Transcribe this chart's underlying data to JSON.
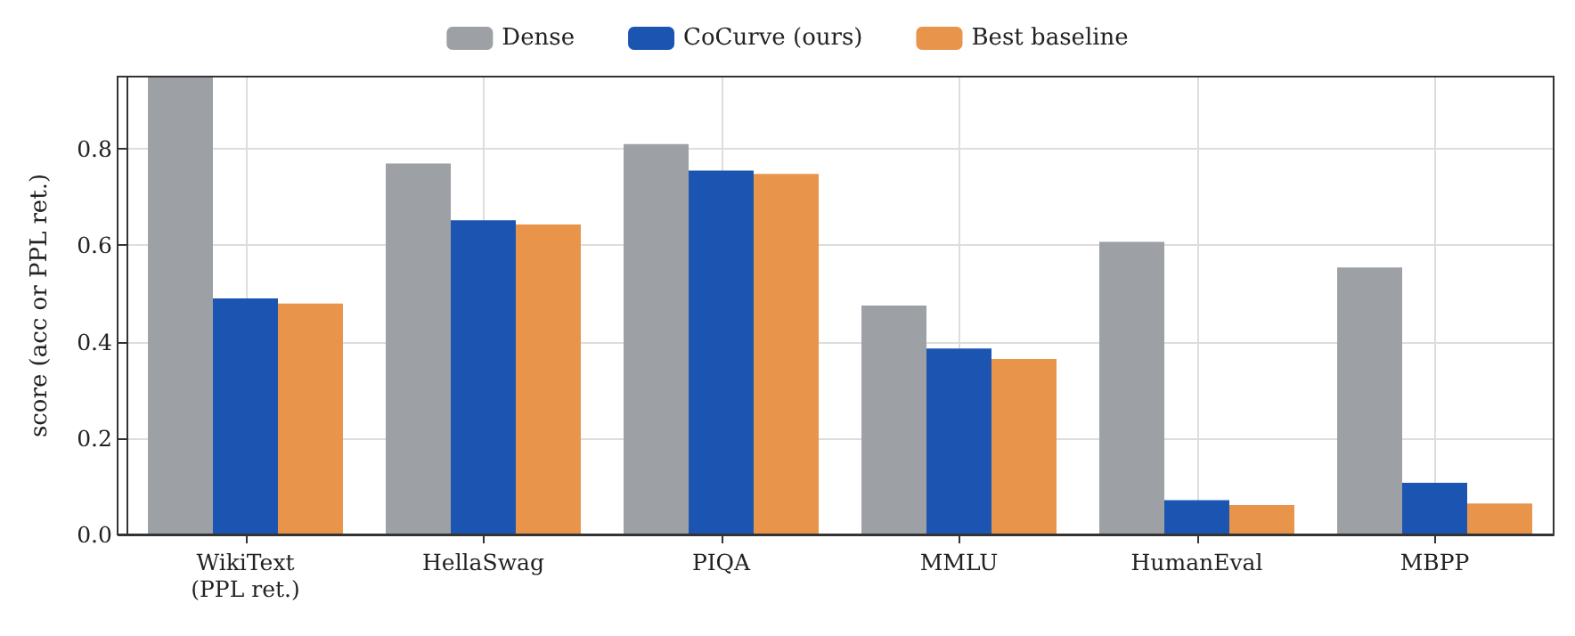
{
  "chart_data": {
    "type": "bar",
    "ylabel": "score (acc or PPL ret.)",
    "categories": [
      "WikiText\n(PPL ret.)",
      "HellaSwag",
      "PIQA",
      "MMLU",
      "HumanEval",
      "MBPP"
    ],
    "series": [
      {
        "name": "Dense",
        "color": "#9da0a5",
        "values": [
          0.95,
          0.77,
          0.81,
          0.475,
          0.607,
          0.554
        ]
      },
      {
        "name": "CoCurve (ours)",
        "color": "#1c55b1",
        "values": [
          0.49,
          0.652,
          0.755,
          0.386,
          0.071,
          0.107
        ]
      },
      {
        "name": "Best baseline",
        "color": "#e8944a",
        "values": [
          0.479,
          0.643,
          0.748,
          0.364,
          0.061,
          0.064
        ]
      }
    ],
    "ylim": [
      0,
      0.95
    ],
    "yticks": [
      {
        "value": 0,
        "label": "0.0"
      },
      {
        "value": 0.2,
        "label": "0.2"
      },
      {
        "value": 0.4,
        "label": "0.4"
      },
      {
        "value": 0.6,
        "label": "0.6"
      },
      {
        "value": 0.8,
        "label": "0.8"
      }
    ],
    "grid": true,
    "legend": "top"
  }
}
